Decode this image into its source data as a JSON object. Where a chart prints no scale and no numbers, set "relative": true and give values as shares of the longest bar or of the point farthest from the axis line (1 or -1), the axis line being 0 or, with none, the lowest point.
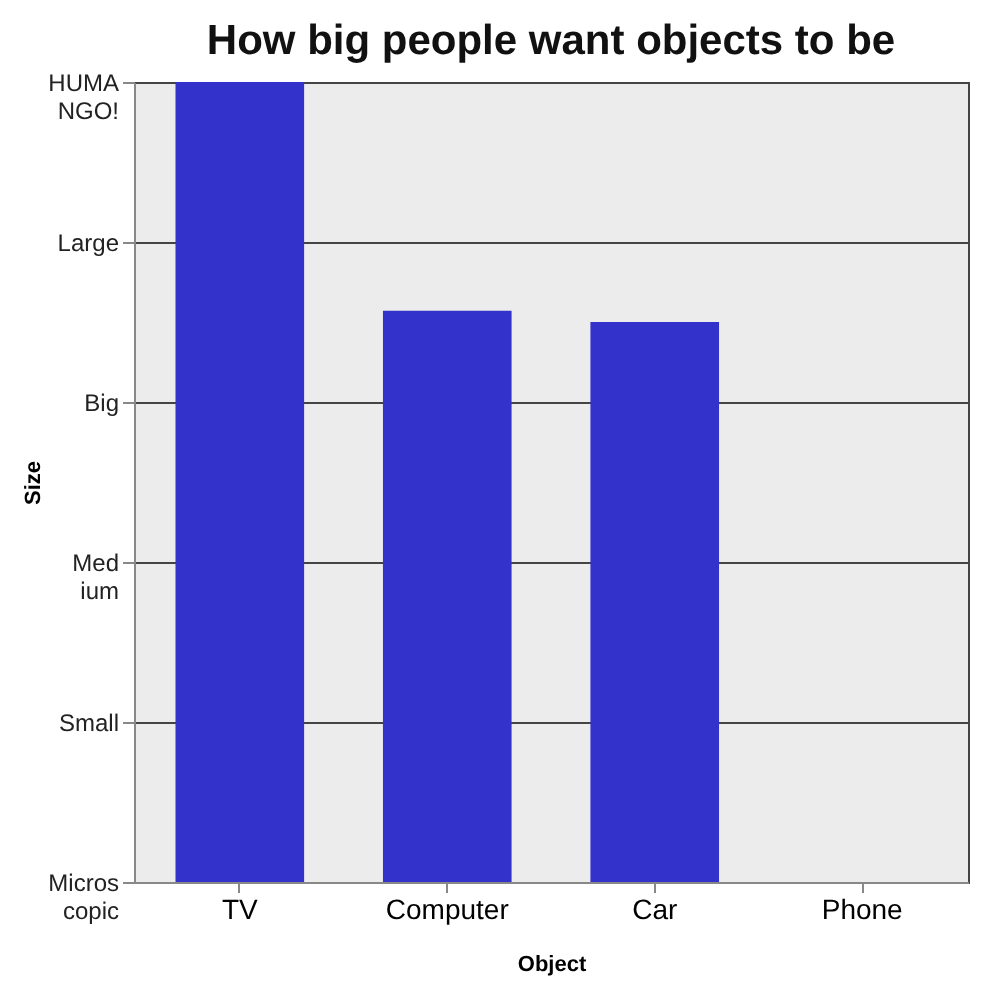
{
  "chart_data": {
    "type": "bar",
    "title": "How big people want objects to be",
    "xlabel": "Object",
    "ylabel": "Size",
    "categories": [
      "TV",
      "Computer",
      "Car",
      "Phone"
    ],
    "values": [
      1,
      0.714,
      0.7,
      0
    ],
    "color": "#3333cc",
    "relative": true,
    "annotations": [
      "Microscopic",
      "Small",
      "Medium",
      "Big",
      "Large",
      "HUMANGO!"
    ],
    "grid": "y"
  }
}
